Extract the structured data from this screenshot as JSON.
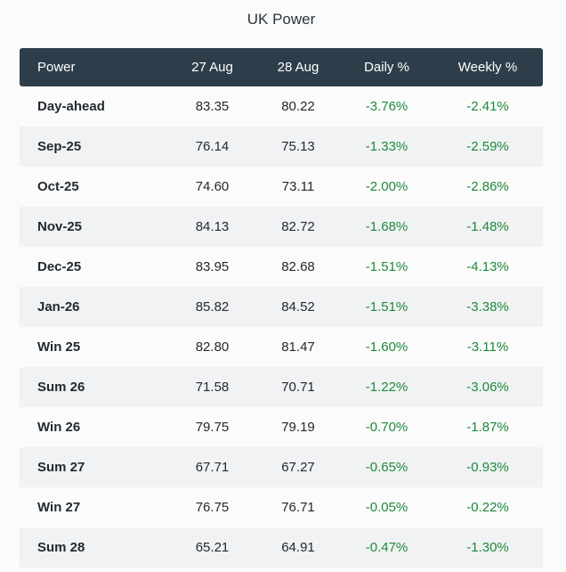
{
  "title": "UK Power",
  "colors": {
    "header_bg": "#2d3e4a",
    "negative_change": "#1e8a3a",
    "alt_row_bg": "#f0f2f4"
  },
  "table": {
    "headers": [
      "Power",
      "27 Aug",
      "28 Aug",
      "Daily %",
      "Weekly %"
    ],
    "rows": [
      [
        "Day-ahead",
        "83.35",
        "80.22",
        "-3.76%",
        "-2.41%"
      ],
      [
        "Sep-25",
        "76.14",
        "75.13",
        "-1.33%",
        "-2.59%"
      ],
      [
        "Oct-25",
        "74.60",
        "73.11",
        "-2.00%",
        "-2.86%"
      ],
      [
        "Nov-25",
        "84.13",
        "82.72",
        "-1.68%",
        "-1.48%"
      ],
      [
        "Dec-25",
        "83.95",
        "82.68",
        "-1.51%",
        "-4.13%"
      ],
      [
        "Jan-26",
        "85.82",
        "84.52",
        "-1.51%",
        "-3.38%"
      ],
      [
        "Win 25",
        "82.80",
        "81.47",
        "-1.60%",
        "-3.11%"
      ],
      [
        "Sum 26",
        "71.58",
        "70.71",
        "-1.22%",
        "-3.06%"
      ],
      [
        "Win 26",
        "79.75",
        "79.19",
        "-0.70%",
        "-1.87%"
      ],
      [
        "Sum 27",
        "67.71",
        "67.27",
        "-0.65%",
        "-0.93%"
      ],
      [
        "Win 27",
        "76.75",
        "76.71",
        "-0.05%",
        "-0.22%"
      ],
      [
        "Sum 28",
        "65.21",
        "64.91",
        "-0.47%",
        "-1.30%"
      ]
    ]
  }
}
